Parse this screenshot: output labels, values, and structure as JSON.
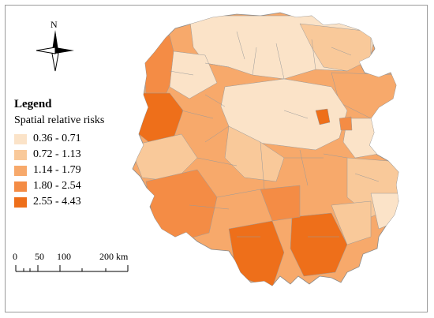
{
  "compass": {
    "north_label": "N"
  },
  "legend": {
    "title": "Legend",
    "subtitle": "Spatial relative risks",
    "items": [
      {
        "label": "0.36 - 0.71",
        "color": "#fbe3c8"
      },
      {
        "label": "0.72 - 1.13",
        "color": "#f9c99a"
      },
      {
        "label": "1.14 - 1.79",
        "color": "#f7a96b"
      },
      {
        "label": "1.80 - 2.54",
        "color": "#f48c45"
      },
      {
        "label": "2.55 - 4.43",
        "color": "#ee6f1a"
      }
    ]
  },
  "scale_bar": {
    "labels": [
      "0",
      "50",
      "100",
      "200 km"
    ]
  }
}
